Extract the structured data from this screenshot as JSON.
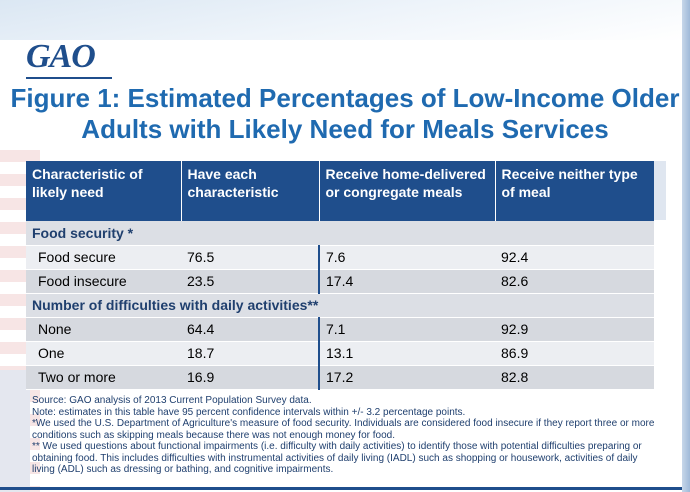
{
  "logo": "GAO",
  "title": "Figure 1: Estimated Percentages of Low-Income Older Adults with Likely Need for Meals Services",
  "table": {
    "headers": [
      "Characteristic of likely need",
      "Have each characteristic",
      "Receive home-delivered or congregate meals",
      "Receive neither type of meal"
    ],
    "sections": [
      {
        "label": "Food security *",
        "rows": [
          {
            "label": "Food secure",
            "have": "76.5",
            "receive": "7.6",
            "neither": "92.4"
          },
          {
            "label": "Food insecure",
            "have": "23.5",
            "receive": "17.4",
            "neither": "82.6"
          }
        ]
      },
      {
        "label": "Number of difficulties with daily activities**",
        "rows": [
          {
            "label": "None",
            "have": "64.4",
            "receive": "7.1",
            "neither": "92.9"
          },
          {
            "label": "One",
            "have": "18.7",
            "receive": "13.1",
            "neither": "86.9"
          },
          {
            "label": "Two or more",
            "have": "16.9",
            "receive": "17.2",
            "neither": "82.8"
          }
        ]
      }
    ]
  },
  "notes": [
    "Source: GAO analysis of 2013 Current Population Survey data.",
    "Note: estimates in this table have 95 percent confidence intervals within +/- 3.2 percentage points.",
    "*We used the U.S. Department of Agriculture's measure of food security. Individuals are considered food insecure if they report three or more conditions such as skipping meals because there was not enough money for food.",
    "** We used questions about functional impairments (i.e. difficulty with daily activities) to identify those with potential difficulties preparing or obtaining food. This includes difficulties with instrumental activities of daily living (IADL) such as shopping or housework, activities of daily living (ADL) such as dressing or bathing, and cognitive impairments."
  ],
  "colors": {
    "brand": "#1f4e8c",
    "title": "#1f6ab0"
  }
}
